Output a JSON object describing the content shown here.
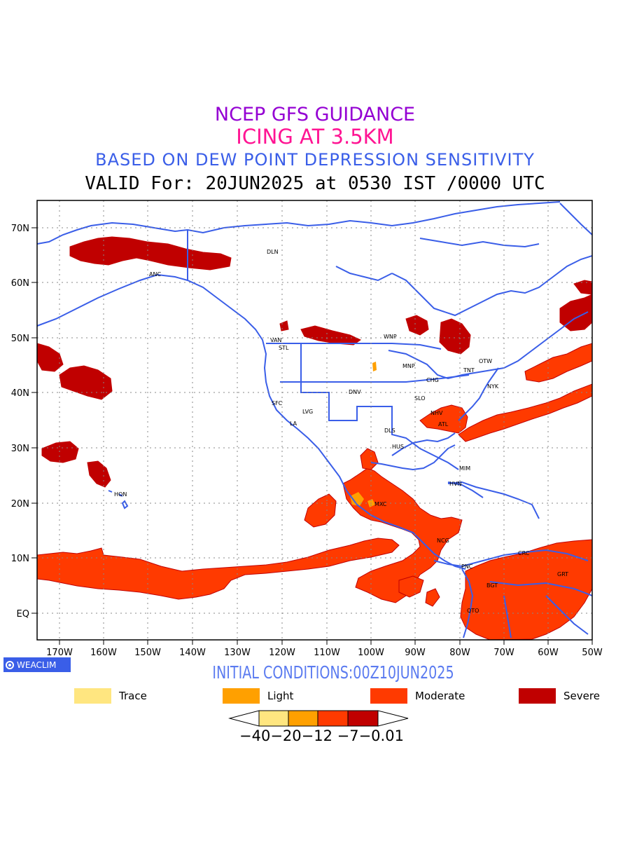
{
  "titles": {
    "line1": "NCEP GFS GUIDANCE",
    "line2": "ICING AT 3.5KM",
    "line3": "BASED ON DEW POINT DEPRESSION SENSITIVITY",
    "line4": "VALID For: 20JUN2025 at 0530 IST /0000 UTC"
  },
  "axes": {
    "lat_labels": [
      "70N",
      "60N",
      "50N",
      "40N",
      "30N",
      "20N",
      "10N",
      "EQ"
    ],
    "lon_labels": [
      "170W",
      "160W",
      "150W",
      "140W",
      "130W",
      "120W",
      "110W",
      "100W",
      "90W",
      "80W",
      "70W",
      "60W",
      "50W"
    ]
  },
  "cities": [
    {
      "name": "DLN"
    },
    {
      "name": "ANC"
    },
    {
      "name": "VAN"
    },
    {
      "name": "STL"
    },
    {
      "name": "WNP"
    },
    {
      "name": "MNP"
    },
    {
      "name": "OTW"
    },
    {
      "name": "TNT"
    },
    {
      "name": "CHG"
    },
    {
      "name": "NYK"
    },
    {
      "name": "DNV"
    },
    {
      "name": "SLO"
    },
    {
      "name": "SFC"
    },
    {
      "name": "LVG"
    },
    {
      "name": "LA"
    },
    {
      "name": "NHV"
    },
    {
      "name": "ATL"
    },
    {
      "name": "DLS"
    },
    {
      "name": "HUS"
    },
    {
      "name": "MIM"
    },
    {
      "name": "HVN"
    },
    {
      "name": "MXC"
    },
    {
      "name": "HON"
    },
    {
      "name": "NCG"
    },
    {
      "name": "PNC"
    },
    {
      "name": "CRC"
    },
    {
      "name": "BGT"
    },
    {
      "name": "GRT"
    },
    {
      "name": "QTO"
    }
  ],
  "logo": "WEACLIM",
  "initial_conditions": "INITIAL CONDITIONS:00Z10JUN2025",
  "legend": [
    {
      "label": "Trace",
      "color": "#ffe680"
    },
    {
      "label": "Light",
      "color": "#ffa000"
    },
    {
      "label": "Moderate",
      "color": "#ff3a00"
    },
    {
      "label": "Severe",
      "color": "#c00000"
    }
  ],
  "colorbar": {
    "labels": "−40−20−12 −7−0.01",
    "colors": [
      "#ffe680",
      "#ffa000",
      "#ff3a00",
      "#c00000"
    ]
  },
  "colors": {
    "coast": "#3a5ee8",
    "moderate": "#ff3a00",
    "severe": "#c00000",
    "light": "#ffa000",
    "trace": "#ffe680"
  }
}
